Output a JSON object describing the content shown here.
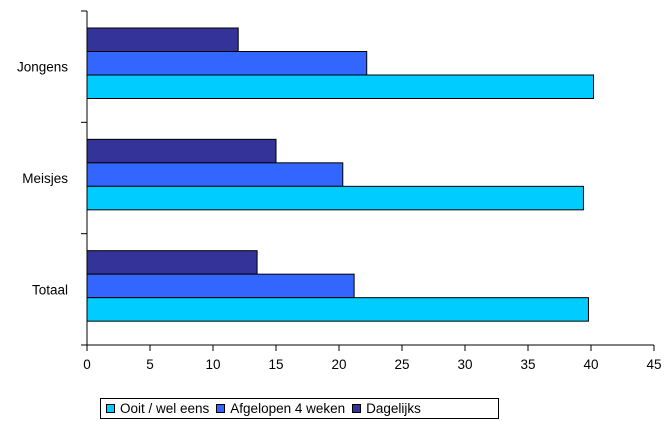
{
  "chart_data": {
    "type": "bar",
    "orientation": "horizontal",
    "categories": [
      "Jongens",
      "Meisjes",
      "Totaal"
    ],
    "series": [
      {
        "name": "Dagelijks",
        "color": "#333399",
        "values": [
          12.0,
          15.0,
          13.5
        ]
      },
      {
        "name": "Afgelopen 4 weken",
        "color": "#3366FF",
        "values": [
          22.2,
          20.3,
          21.2
        ]
      },
      {
        "name": "Ooit / wel eens",
        "color": "#00CCFF",
        "values": [
          40.2,
          39.4,
          39.8
        ]
      }
    ],
    "xlim": [
      0,
      45
    ],
    "xticks": [
      "0",
      "5",
      "10",
      "15",
      "20",
      "25",
      "30",
      "35",
      "40",
      "45"
    ],
    "grid": false,
    "legend_position": "bottom"
  },
  "legend": {
    "items": [
      {
        "label": "Ooit / wel eens",
        "color": "#00CCFF"
      },
      {
        "label": "Afgelopen 4 weken",
        "color": "#3366FF"
      },
      {
        "label": "Dagelijks",
        "color": "#333399"
      }
    ]
  }
}
